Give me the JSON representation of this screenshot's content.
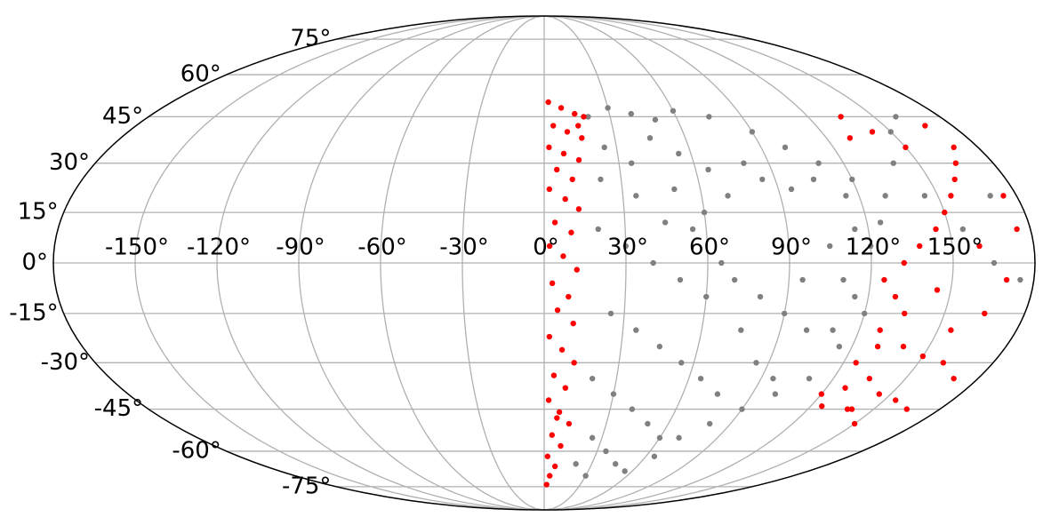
{
  "chart_data": {
    "type": "scatter",
    "projection": "mollweide",
    "grid": true,
    "xlim": [
      -180,
      180
    ],
    "ylim": [
      -90,
      90
    ],
    "xticks": [
      {
        "value": -150,
        "label": "-150°"
      },
      {
        "value": -120,
        "label": "-120°"
      },
      {
        "value": -90,
        "label": "-90°"
      },
      {
        "value": -60,
        "label": "-60°"
      },
      {
        "value": -30,
        "label": "-30°"
      },
      {
        "value": 0,
        "label": "0°"
      },
      {
        "value": 30,
        "label": "30°"
      },
      {
        "value": 60,
        "label": "60°"
      },
      {
        "value": 90,
        "label": "90°"
      },
      {
        "value": 120,
        "label": "120°"
      },
      {
        "value": 150,
        "label": "150°"
      }
    ],
    "yticks": [
      {
        "value": -75,
        "label": "-75°"
      },
      {
        "value": -60,
        "label": "-60°"
      },
      {
        "value": -45,
        "label": "-45°"
      },
      {
        "value": -30,
        "label": "-30°"
      },
      {
        "value": -15,
        "label": "-15°"
      },
      {
        "value": 0,
        "label": "0°"
      },
      {
        "value": 15,
        "label": "15°"
      },
      {
        "value": 30,
        "label": "30°"
      },
      {
        "value": 45,
        "label": "45°"
      },
      {
        "value": 60,
        "label": "60°"
      },
      {
        "value": 75,
        "label": "75°"
      }
    ],
    "series": [
      {
        "color": "#808080",
        "x": [
          20,
          30,
          40,
          50,
          60,
          75,
          90,
          100,
          110,
          120,
          25,
          35,
          45,
          55,
          65,
          80,
          95,
          105,
          115,
          22,
          35,
          50,
          60,
          70,
          85,
          115,
          120,
          110,
          115,
          120,
          125,
          130,
          140,
          150,
          160,
          145,
          155,
          165,
          175,
          170,
          20,
          30,
          40,
          50,
          60,
          70,
          80,
          90,
          100,
          110,
          25,
          35,
          45,
          55,
          65,
          75,
          85,
          95,
          20,
          30,
          40,
          50,
          60,
          70,
          80,
          90,
          25,
          35,
          45,
          55,
          20,
          30,
          65,
          100,
          110,
          115,
          75,
          65,
          55,
          45,
          105,
          95
        ],
        "values": [
          45,
          48,
          46,
          44,
          47,
          45,
          40,
          35,
          30,
          25,
          35,
          30,
          38,
          33,
          28,
          30,
          22,
          25,
          20,
          25,
          20,
          22,
          15,
          20,
          25,
          10,
          5,
          -5,
          -10,
          -15,
          12,
          20,
          30,
          40,
          45,
          20,
          10,
          0,
          -5,
          20,
          10,
          5,
          0,
          -5,
          -10,
          -5,
          -10,
          -15,
          -20,
          -20,
          -15,
          -20,
          -25,
          -30,
          -35,
          -40,
          -30,
          -35,
          -35,
          -40,
          -45,
          -50,
          -55,
          -55,
          -50,
          -45,
          -55,
          -60,
          -65,
          -68,
          -65,
          -70,
          -62,
          -40,
          -35,
          -25,
          -20,
          0,
          10,
          12,
          5,
          -5
        ]
      },
      {
        "color": "#ff0000",
        "x": [
          2,
          8,
          14,
          4,
          10,
          16,
          2,
          8,
          14,
          5,
          11,
          2,
          8,
          13,
          4,
          10,
          2,
          7,
          12,
          3,
          9,
          5,
          11,
          2,
          7,
          12,
          4,
          9,
          2,
          7,
          12,
          4,
          9,
          2,
          7,
          4,
          2,
          15,
          18,
          6,
          125,
          130,
          135,
          128,
          140,
          150,
          160,
          135,
          145,
          155,
          128,
          140,
          150,
          165,
          170,
          125,
          132,
          138,
          145,
          150,
          155,
          160,
          165,
          170,
          142,
          135,
          130,
          150,
          160,
          170,
          175,
          165,
          155,
          145,
          175,
          130,
          138,
          120,
          125,
          168
        ],
        "values": [
          50,
          48,
          46,
          42,
          40,
          38,
          35,
          33,
          31,
          28,
          25,
          22,
          19,
          16,
          12,
          9,
          5,
          2,
          -2,
          -6,
          -10,
          -14,
          -18,
          -22,
          -26,
          -30,
          -34,
          -38,
          -42,
          -46,
          -50,
          -54,
          -58,
          -62,
          -66,
          -70,
          -74,
          42,
          45,
          -48,
          -5,
          -10,
          -15,
          -20,
          -25,
          -28,
          -30,
          -35,
          -40,
          -42,
          -38,
          -45,
          -50,
          -45,
          -35,
          -30,
          0,
          5,
          10,
          15,
          20,
          25,
          30,
          35,
          40,
          45,
          38,
          35,
          5,
          -5,
          10,
          -15,
          -20,
          -8,
          20,
          -25,
          -45,
          -40,
          -44,
          42
        ]
      }
    ]
  }
}
